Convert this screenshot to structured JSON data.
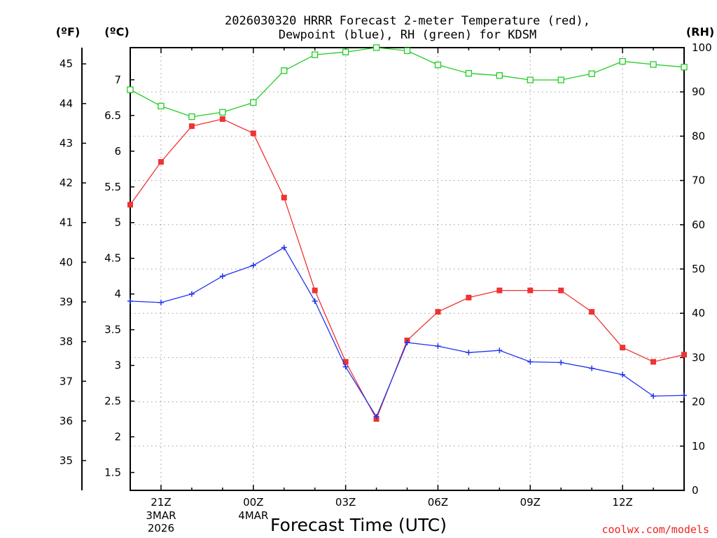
{
  "chart_data": {
    "type": "line",
    "title_lines": [
      "2026030320 HRRR Forecast 2-meter Temperature (red),",
      "Dewpoint (blue), RH (green) for KDSM"
    ],
    "axis_units": {
      "fahrenheit": "(ºF)",
      "celsius": "(ºC)",
      "rh": "(RH)"
    },
    "xlabel": "Forecast Time (UTC)",
    "credit": "coolwx.com/models",
    "x_range_hours": [
      20,
      38
    ],
    "x_ticks": [
      {
        "hour": 21,
        "label": "21Z"
      },
      {
        "hour": 24,
        "label": "00Z"
      },
      {
        "hour": 27,
        "label": "03Z"
      },
      {
        "hour": 30,
        "label": "06Z"
      },
      {
        "hour": 33,
        "label": "09Z"
      },
      {
        "hour": 36,
        "label": "12Z"
      }
    ],
    "date_labels": [
      {
        "hour": 21,
        "lines": [
          "3MAR",
          "2026"
        ]
      },
      {
        "hour": 24,
        "lines": [
          "4MAR"
        ]
      }
    ],
    "celsius_axis": {
      "range": [
        1.25,
        7.45
      ],
      "ticks": [
        1.5,
        2,
        2.5,
        3,
        3.5,
        4,
        4.5,
        5,
        5.5,
        6,
        6.5,
        7
      ]
    },
    "fahrenheit_axis": {
      "range": [
        34.25,
        45.41
      ],
      "ticks": [
        35,
        36,
        37,
        38,
        39,
        40,
        41,
        42,
        43,
        44,
        45
      ]
    },
    "rh_axis": {
      "range": [
        0,
        100
      ],
      "ticks": [
        0,
        10,
        20,
        30,
        40,
        50,
        60,
        70,
        80,
        90,
        100
      ]
    },
    "x": [
      20,
      21,
      22,
      23,
      24,
      25,
      26,
      27,
      28,
      29,
      30,
      31,
      32,
      33,
      34,
      35,
      36,
      37,
      38
    ],
    "series": [
      {
        "id": "temperature",
        "axis": "celsius",
        "color": "#ee3333",
        "marker": "filled-square",
        "values": [
          5.25,
          5.85,
          6.35,
          6.45,
          6.25,
          5.35,
          4.05,
          3.05,
          2.25,
          3.35,
          3.75,
          3.95,
          4.05,
          4.05,
          4.05,
          3.75,
          3.25,
          3.05,
          3.15
        ]
      },
      {
        "id": "dewpoint",
        "axis": "celsius",
        "color": "#2233ee",
        "marker": "plus",
        "values": [
          3.9,
          3.88,
          4.0,
          4.25,
          4.4,
          4.65,
          3.9,
          2.98,
          2.28,
          3.32,
          3.27,
          3.18,
          3.21,
          3.05,
          3.04,
          2.96,
          2.87,
          2.57,
          2.58
        ]
      },
      {
        "id": "rh",
        "axis": "rh",
        "color": "#22cc22",
        "marker": "open-square",
        "values": [
          90.5,
          86.8,
          84.4,
          85.4,
          87.6,
          94.8,
          98.4,
          99.0,
          100.0,
          99.3,
          96.1,
          94.2,
          93.7,
          92.7,
          92.7,
          94.1,
          96.9,
          96.2,
          95.6
        ]
      }
    ],
    "grid": "dotted"
  }
}
